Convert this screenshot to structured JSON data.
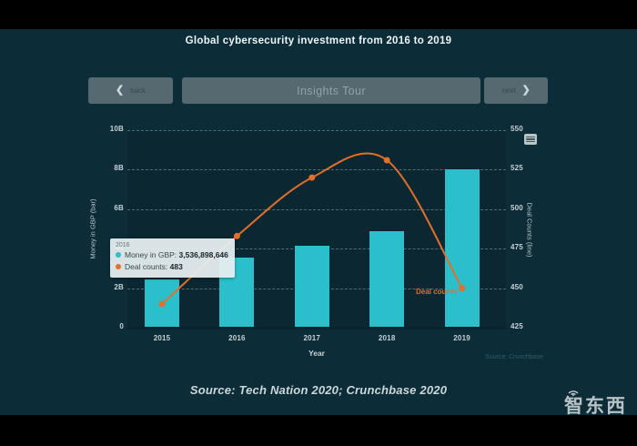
{
  "page": {
    "title": "Global cybersecurity investment from 2016 to 2019",
    "caption": "Source: Tech Nation 2020; Crunchbase 2020",
    "watermark": "智东西"
  },
  "nav": {
    "back_chevron": "❮",
    "back_label": "back",
    "center_label": "Insights Tour",
    "next_label": "next",
    "next_chevron": "❯"
  },
  "tooltip": {
    "title": "2016",
    "rows": [
      {
        "label": "Money in GBP",
        "value": "3,536,898,646",
        "dot_color": "#2abfca"
      },
      {
        "label": "Deal counts",
        "value": "483",
        "dot_color": "#e2702c"
      }
    ]
  },
  "chart_data": {
    "type": "combo",
    "categories": [
      "2015",
      "2016",
      "2017",
      "2018",
      "2019"
    ],
    "series": [
      {
        "name": "Money in GBP",
        "type": "bar",
        "axis": "left",
        "color": "#2abfca",
        "values": [
          2460000000,
          3536898646,
          4150000000,
          4900000000,
          8030000000
        ]
      },
      {
        "name": "Deal counts",
        "type": "line",
        "axis": "right",
        "color": "#e2702c",
        "values": [
          440,
          483,
          520,
          531,
          450
        ]
      }
    ],
    "title": "Global cybersecurity investment from 2016 to 2019",
    "xlabel": "Year",
    "ylabel_left": "Money in GBP (bar)",
    "ylabel_right": "Deal Counts (line)",
    "yticks_left": [
      "0",
      "2B",
      "4B",
      "6B",
      "8B",
      "10B"
    ],
    "yticks_right": [
      "425",
      "450",
      "475",
      "500",
      "525",
      "550"
    ],
    "ylim_left": [
      0,
      10000000000
    ],
    "ylim_right": [
      425,
      550
    ],
    "grid": "horizontal-dashed",
    "legend": "none",
    "annotation": "Deal counts",
    "source_note": "Source: Crunchbase"
  }
}
